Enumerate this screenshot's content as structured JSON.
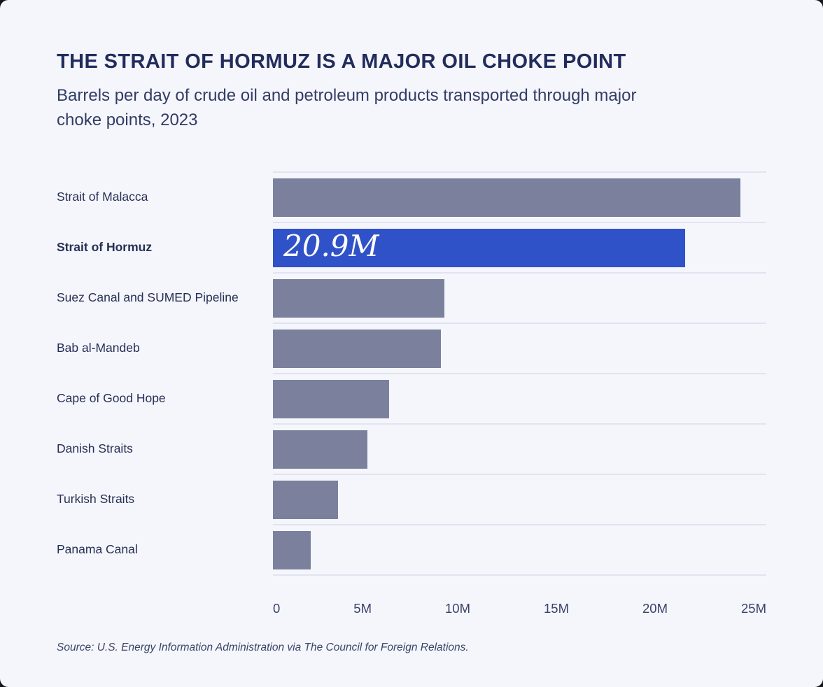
{
  "title": "THE STRAIT OF HORMUZ IS A MAJOR OIL CHOKE POINT",
  "subtitle": "Barrels per day of crude oil and petroleum products transported through major choke points, 2023",
  "source_note": "Source: U.S. Energy Information Administration via The Council for Foreign Relations.",
  "colors": {
    "page_background": "#14151D",
    "card_background": "#F5F6FB",
    "title_text": "#222C5C",
    "body_text": "#323C66",
    "bar": "#7B819C",
    "highlight_bar": "#3052C9",
    "bar_value_text": "#FFFFFF",
    "gridline": "#E1E3F0"
  },
  "chart_data": {
    "type": "bar",
    "orientation": "horizontal",
    "title": "THE STRAIT OF HORMUZ IS A MAJOR OIL CHOKE POINT",
    "subtitle": "Barrels per day of crude oil and petroleum products transported through major choke points, 2023",
    "categories": [
      "Strait of Malacca",
      "Strait of Hormuz",
      "Suez Canal and SUMED Pipeline",
      "Bab al-Mandeb",
      "Cape of Good Hope",
      "Danish Straits",
      "Turkish Straits",
      "Panama Canal"
    ],
    "values": [
      23.7,
      20.9,
      8.7,
      8.5,
      5.9,
      4.8,
      3.3,
      1.9
    ],
    "value_unit": "M",
    "highlight_index": 1,
    "highlight_label": "20.9M",
    "x_ticks": [
      "0",
      "5M",
      "10M",
      "15M",
      "20M",
      "25M"
    ],
    "xlim": [
      0,
      25
    ],
    "grid": "horizontal-row-separators",
    "legend": "none"
  }
}
